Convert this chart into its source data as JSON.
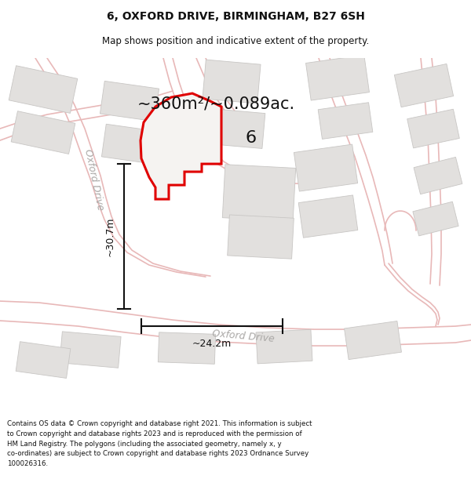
{
  "title_line1": "6, OXFORD DRIVE, BIRMINGHAM, B27 6SH",
  "title_line2": "Map shows position and indicative extent of the property.",
  "area_label": "~360m²/~0.089ac.",
  "number_label": "6",
  "dim_vertical": "~30.7m",
  "dim_horizontal": "~24.2m",
  "road_label_left": "Oxford Drive",
  "road_label_bottom": "Oxford Drive",
  "footer_text": "Contains OS data © Crown copyright and database right 2021. This information is subject to Crown copyright and database rights 2023 and is reproduced with the permission of HM Land Registry. The polygons (including the associated geometry, namely x, y co-ordinates) are subject to Crown copyright and database rights 2023 Ordnance Survey 100026316.",
  "map_bg": "#f7f5f3",
  "road_line_color": "#e8b8b8",
  "building_fill": "#e2e0de",
  "building_edge": "#c8c6c4",
  "highlight_color": "#e00000",
  "dim_color": "#111111",
  "text_color": "#111111",
  "road_text_color": "#aaa8a6",
  "title_fontsize": 10,
  "subtitle_fontsize": 8.5,
  "area_fontsize": 15,
  "dim_fontsize": 9,
  "road_fontsize": 9,
  "number_fontsize": 16,
  "footer_fontsize": 6.2
}
